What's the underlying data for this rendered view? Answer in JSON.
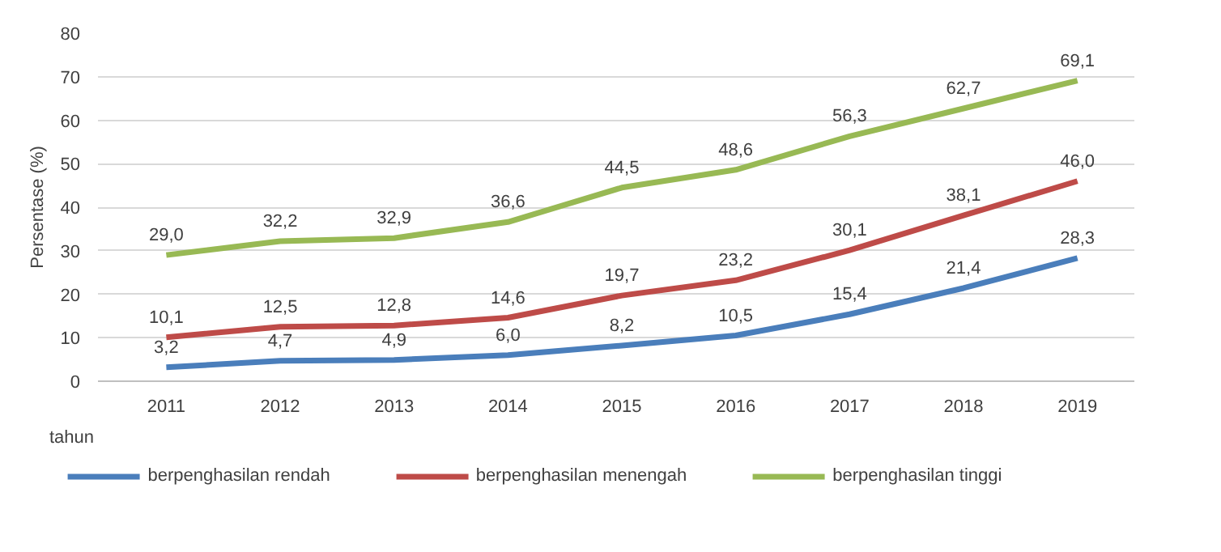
{
  "chart_data": {
    "type": "line",
    "xlabel": "tahun",
    "ylabel": "Persentase (%)",
    "categories": [
      "2011",
      "2012",
      "2013",
      "2014",
      "2015",
      "2016",
      "2017",
      "2018",
      "2019"
    ],
    "series": [
      {
        "name": "berpenghasilan rendah",
        "color": "#4a7ebb",
        "values": [
          3.2,
          4.7,
          4.9,
          6.0,
          8.2,
          10.5,
          15.4,
          21.4,
          28.3
        ],
        "value_labels": [
          "3,2",
          "4,7",
          "4,9",
          "6,0",
          "8,2",
          "10,5",
          "15,4",
          "21,4",
          "28,3"
        ]
      },
      {
        "name": "berpenghasilan menengah",
        "color": "#be4b48",
        "values": [
          10.1,
          12.5,
          12.8,
          14.6,
          19.7,
          23.2,
          30.1,
          38.1,
          46.0
        ],
        "value_labels": [
          "10,1",
          "12,5",
          "12,8",
          "14,6",
          "19,7",
          "23,2",
          "30,1",
          "38,1",
          "46,0"
        ]
      },
      {
        "name": "berpenghasilan tinggi",
        "color": "#98b954",
        "values": [
          29.0,
          32.2,
          32.9,
          36.6,
          44.5,
          48.6,
          56.3,
          62.7,
          69.1
        ],
        "value_labels": [
          "29,0",
          "32,2",
          "32,9",
          "36,6",
          "44,5",
          "48,6",
          "56,3",
          "62,7",
          "69,1"
        ]
      }
    ],
    "ylim": [
      0,
      80
    ],
    "yticks": [
      0,
      10,
      20,
      30,
      40,
      50,
      60,
      70,
      80
    ],
    "grid": "y",
    "legend": "bottom",
    "marker": "none",
    "line_style": "solid"
  }
}
